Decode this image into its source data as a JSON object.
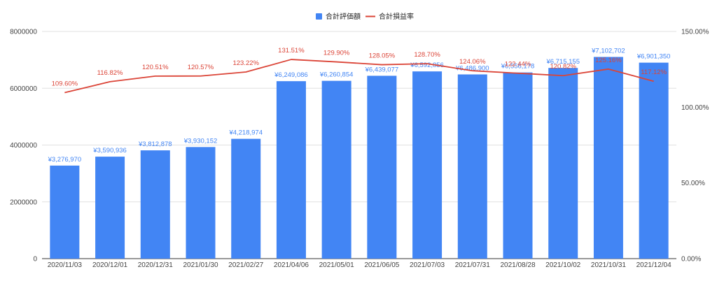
{
  "chart_data": {
    "type": "bar",
    "categories": [
      "2020/11/03",
      "2020/12/01",
      "2020/12/31",
      "2021/01/30",
      "2021/02/27",
      "2021/04/06",
      "2021/05/01",
      "2021/06/05",
      "2021/07/03",
      "2021/07/31",
      "2021/08/28",
      "2021/10/02",
      "2021/10/31",
      "2021/12/04"
    ],
    "series": [
      {
        "name": "合計評価額",
        "type": "bar",
        "axis": "left",
        "color": "#4285f4",
        "values": [
          3276970,
          3590936,
          3812878,
          3930152,
          4218974,
          6249086,
          6260854,
          6439077,
          6592856,
          6486900,
          6556178,
          6715155,
          7102702,
          6901350
        ],
        "labels": [
          "¥3,276,970",
          "¥3,590,936",
          "¥3,812,878",
          "¥3,930,152",
          "¥4,218,974",
          "¥6,249,086",
          "¥6,260,854",
          "¥6,439,077",
          "¥6,592,856",
          "¥6,486,900",
          "¥6,556,178",
          "¥6,715,155",
          "¥7,102,702",
          "¥6,901,350"
        ]
      },
      {
        "name": "合計損益率",
        "type": "line",
        "axis": "right",
        "color": "#db4437",
        "values": [
          109.6,
          116.82,
          120.51,
          120.57,
          123.22,
          131.51,
          129.9,
          128.05,
          128.7,
          124.06,
          122.44,
          120.82,
          125.16,
          117.12
        ],
        "labels": [
          "109.60%",
          "116.82%",
          "120.51%",
          "120.57%",
          "123.22%",
          "131.51%",
          "129.90%",
          "128.05%",
          "128.70%",
          "124.06%",
          "122.44%",
          "120.82%",
          "125.16%",
          "117.12%"
        ]
      }
    ],
    "y_left": {
      "ylim": [
        0,
        8000000
      ],
      "ticks": [
        "0",
        "2000000",
        "4000000",
        "6000000",
        "8000000"
      ]
    },
    "y_right": {
      "ylim": [
        0,
        150
      ],
      "ticks": [
        "0.00%",
        "50.00%",
        "100.00%",
        "150.00%"
      ]
    },
    "grid": true,
    "legend_position": "top-center"
  }
}
